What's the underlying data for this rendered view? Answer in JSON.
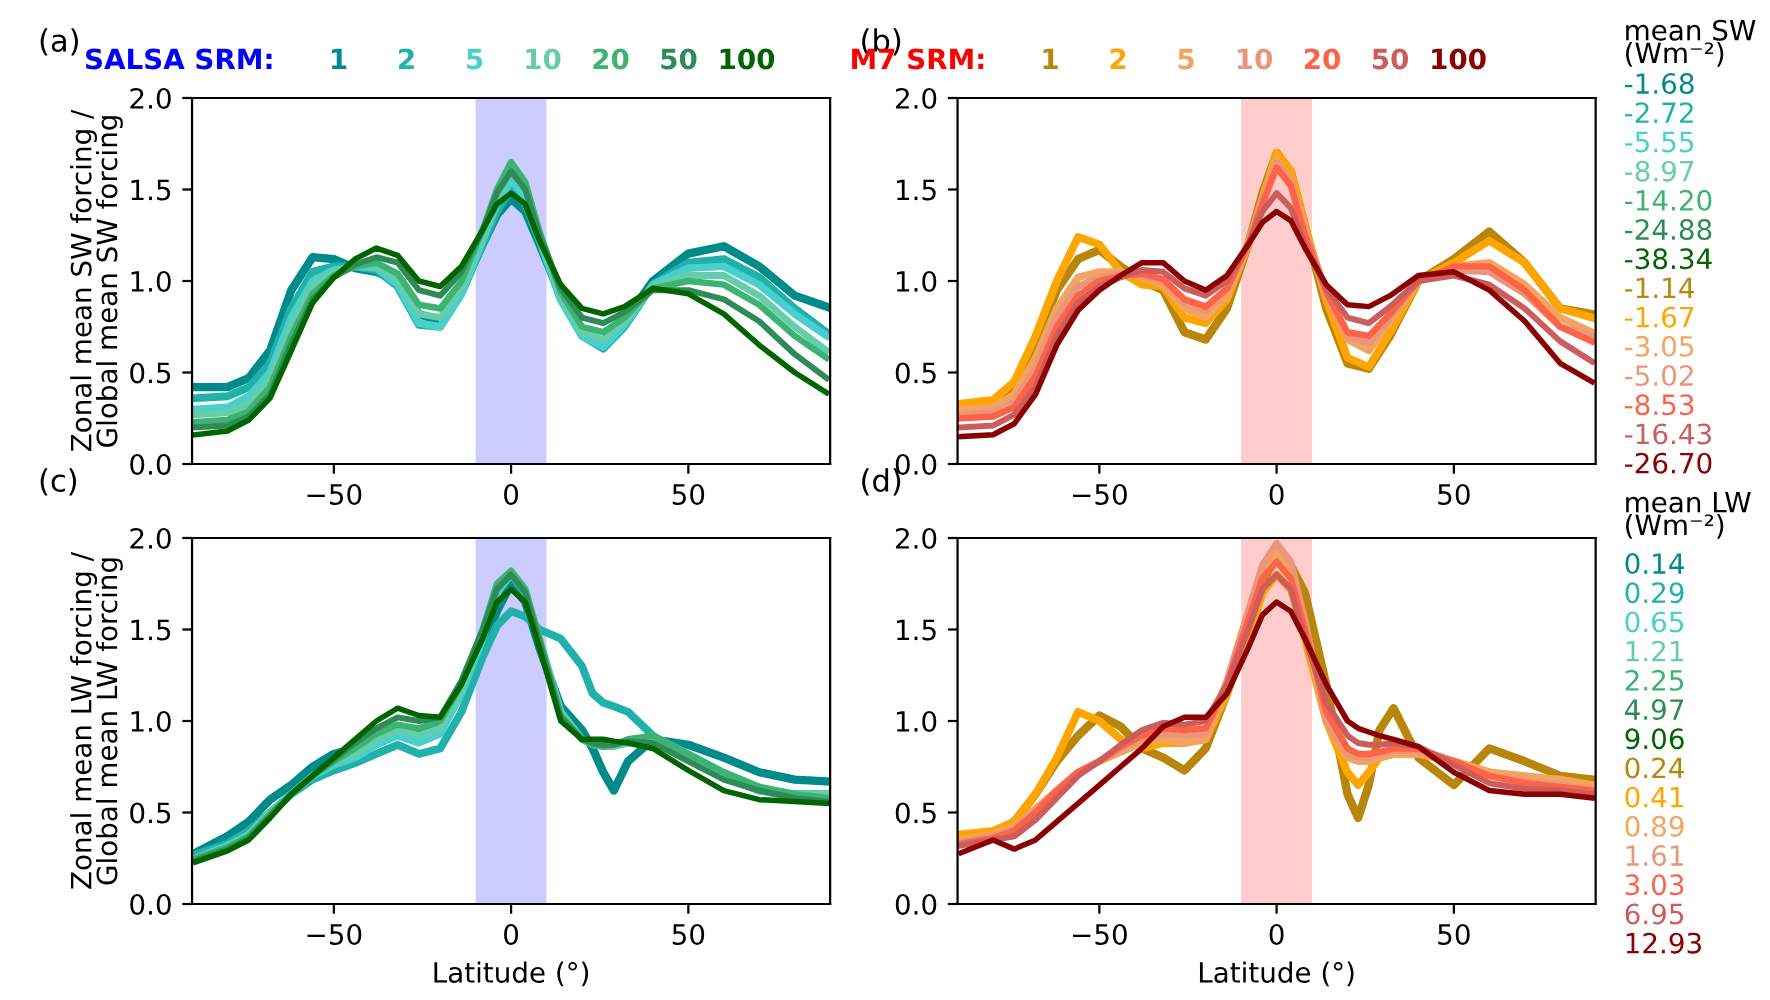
{
  "chart_data": [
    {
      "type": "line",
      "title": "(a)",
      "ylabel": "Zonal mean SW forcing /\nGlobal mean SW forcing",
      "legend_title": "SALSA SRM:",
      "legend": "top",
      "grid": false,
      "xlim": [
        -90,
        90
      ],
      "ylim": [
        0,
        2
      ],
      "xticks": [
        -50,
        0,
        50
      ],
      "yticks": [
        {
          "value": 0,
          "label": "0.0"
        },
        {
          "value": 0.5,
          "label": "0.5"
        },
        {
          "value": 1,
          "label": "1.0"
        },
        {
          "value": 1.5,
          "label": "1.5"
        },
        {
          "value": 2,
          "label": "2.0"
        }
      ],
      "bands": [
        {
          "axis": "x",
          "from": -10,
          "to": 10,
          "color": "#ccccff"
        }
      ],
      "x": [
        -89,
        -80,
        -74,
        -68,
        -62,
        -56,
        -50,
        -44,
        -38,
        -32,
        -26,
        -20,
        -14,
        -8,
        -4,
        0,
        4,
        8,
        14,
        20,
        26,
        32,
        40,
        50,
        60,
        70,
        80,
        89
      ],
      "series": [
        {
          "name": "1",
          "color": "#008b8b",
          "values": [
            0.42,
            0.42,
            0.47,
            0.62,
            0.95,
            1.13,
            1.12,
            1.07,
            1.05,
            1.0,
            0.82,
            0.78,
            0.95,
            1.2,
            1.36,
            1.45,
            1.38,
            1.2,
            0.92,
            0.72,
            0.65,
            0.78,
            1.0,
            1.15,
            1.19,
            1.08,
            0.92,
            0.86
          ]
        },
        {
          "name": "2",
          "color": "#20b2aa",
          "values": [
            0.36,
            0.37,
            0.42,
            0.55,
            0.85,
            1.05,
            1.08,
            1.08,
            1.06,
            0.97,
            0.76,
            0.75,
            0.93,
            1.2,
            1.38,
            1.5,
            1.42,
            1.22,
            0.9,
            0.7,
            0.63,
            0.75,
            0.98,
            1.1,
            1.12,
            1.02,
            0.85,
            0.72
          ]
        },
        {
          "name": "5",
          "color": "#48d1cc",
          "values": [
            0.3,
            0.31,
            0.37,
            0.5,
            0.8,
            1.0,
            1.06,
            1.08,
            1.07,
            0.98,
            0.77,
            0.75,
            0.93,
            1.22,
            1.42,
            1.55,
            1.46,
            1.23,
            0.9,
            0.7,
            0.64,
            0.76,
            0.98,
            1.07,
            1.08,
            0.98,
            0.82,
            0.7
          ]
        },
        {
          "name": "10",
          "color": "#66cdaa",
          "values": [
            0.27,
            0.28,
            0.33,
            0.46,
            0.75,
            0.97,
            1.05,
            1.08,
            1.08,
            1.01,
            0.82,
            0.8,
            0.96,
            1.25,
            1.46,
            1.6,
            1.5,
            1.25,
            0.92,
            0.72,
            0.68,
            0.78,
            0.97,
            1.03,
            1.03,
            0.92,
            0.75,
            0.62
          ]
        },
        {
          "name": "20",
          "color": "#3cb371",
          "values": [
            0.23,
            0.24,
            0.29,
            0.42,
            0.7,
            0.93,
            1.03,
            1.08,
            1.1,
            1.04,
            0.87,
            0.85,
            1.0,
            1.28,
            1.5,
            1.65,
            1.54,
            1.27,
            0.94,
            0.75,
            0.72,
            0.8,
            0.96,
            1.0,
            0.98,
            0.87,
            0.7,
            0.58
          ]
        },
        {
          "name": "50",
          "color": "#2e8b57",
          "values": [
            0.2,
            0.21,
            0.26,
            0.38,
            0.66,
            0.9,
            1.02,
            1.09,
            1.13,
            1.1,
            0.95,
            0.92,
            1.05,
            1.28,
            1.48,
            1.6,
            1.5,
            1.25,
            0.96,
            0.8,
            0.77,
            0.83,
            0.95,
            0.95,
            0.9,
            0.78,
            0.6,
            0.47
          ]
        },
        {
          "name": "100",
          "color": "#006400",
          "values": [
            0.16,
            0.18,
            0.24,
            0.36,
            0.62,
            0.88,
            1.02,
            1.12,
            1.18,
            1.14,
            1.0,
            0.97,
            1.08,
            1.28,
            1.42,
            1.48,
            1.42,
            1.22,
            0.98,
            0.85,
            0.82,
            0.86,
            0.96,
            0.93,
            0.82,
            0.65,
            0.5,
            0.39
          ]
        }
      ]
    },
    {
      "type": "line",
      "title": "(b)",
      "legend_title": "M7 SRM:",
      "legend": "top",
      "grid": false,
      "xlim": [
        -90,
        90
      ],
      "ylim": [
        0,
        2
      ],
      "xticks": [
        -50,
        0,
        50
      ],
      "yticks": [
        {
          "value": 0,
          "label": "0.0"
        },
        {
          "value": 0.5,
          "label": "0.5"
        },
        {
          "value": 1,
          "label": "1.0"
        },
        {
          "value": 1.5,
          "label": "1.5"
        },
        {
          "value": 2,
          "label": "2.0"
        }
      ],
      "bands": [
        {
          "axis": "x",
          "from": -10,
          "to": 10,
          "color": "#ffcccc"
        }
      ],
      "annotations": [
        "mean SW\n(Wm⁻²)",
        "-1.68",
        "-2.72",
        "-5.55",
        "-8.97",
        "-14.20",
        "-24.88",
        "-38.34",
        "-1.14",
        "-1.67",
        "-3.05",
        "-5.02",
        "-8.53",
        "-16.43",
        "-26.70"
      ],
      "x": [
        -89,
        -80,
        -74,
        -68,
        -62,
        -56,
        -50,
        -44,
        -38,
        -32,
        -26,
        -20,
        -14,
        -8,
        -4,
        0,
        4,
        8,
        14,
        20,
        26,
        32,
        40,
        50,
        60,
        70,
        80,
        89
      ],
      "series": [
        {
          "name": "1",
          "color": "#b8860b",
          "values": [
            0.3,
            0.32,
            0.4,
            0.65,
            0.95,
            1.12,
            1.17,
            1.08,
            1.0,
            0.95,
            0.72,
            0.68,
            0.85,
            1.2,
            1.48,
            1.7,
            1.6,
            1.3,
            0.85,
            0.55,
            0.52,
            0.7,
            1.0,
            1.12,
            1.27,
            1.1,
            0.85,
            0.82
          ]
        },
        {
          "name": "2",
          "color": "#ffa500",
          "values": [
            0.33,
            0.35,
            0.45,
            0.7,
            1.0,
            1.24,
            1.2,
            1.05,
            0.98,
            0.97,
            0.8,
            0.77,
            0.9,
            1.2,
            1.45,
            1.7,
            1.6,
            1.3,
            0.9,
            0.58,
            0.53,
            0.72,
            1.0,
            1.1,
            1.22,
            1.1,
            0.85,
            0.8
          ]
        },
        {
          "name": "5",
          "color": "#f4a460",
          "values": [
            0.3,
            0.31,
            0.38,
            0.58,
            0.85,
            1.02,
            1.05,
            1.05,
            1.02,
            0.98,
            0.85,
            0.8,
            0.92,
            1.2,
            1.45,
            1.66,
            1.55,
            1.28,
            0.93,
            0.68,
            0.62,
            0.78,
            1.0,
            1.08,
            1.1,
            0.98,
            0.8,
            0.72
          ]
        },
        {
          "name": "10",
          "color": "#e9967a",
          "values": [
            0.27,
            0.28,
            0.34,
            0.52,
            0.8,
            0.97,
            1.02,
            1.04,
            1.03,
            1.0,
            0.88,
            0.84,
            0.95,
            1.2,
            1.45,
            1.65,
            1.55,
            1.27,
            0.93,
            0.7,
            0.66,
            0.8,
            1.0,
            1.06,
            1.05,
            0.93,
            0.75,
            0.7
          ]
        },
        {
          "name": "20",
          "color": "#ff6347",
          "values": [
            0.25,
            0.26,
            0.31,
            0.48,
            0.75,
            0.92,
            1.0,
            1.03,
            1.04,
            1.01,
            0.9,
            0.86,
            0.96,
            1.2,
            1.42,
            1.62,
            1.52,
            1.25,
            0.94,
            0.72,
            0.7,
            0.82,
            1.0,
            1.08,
            1.08,
            0.95,
            0.75,
            0.67
          ]
        },
        {
          "name": "50",
          "color": "#cd5c5c",
          "values": [
            0.2,
            0.21,
            0.27,
            0.42,
            0.7,
            0.88,
            0.97,
            1.02,
            1.06,
            1.05,
            0.96,
            0.92,
            1.0,
            1.2,
            1.38,
            1.48,
            1.4,
            1.2,
            0.96,
            0.8,
            0.77,
            0.86,
            1.0,
            1.03,
            0.98,
            0.85,
            0.67,
            0.56
          ]
        },
        {
          "name": "100",
          "color": "#8b0000",
          "values": [
            0.15,
            0.16,
            0.22,
            0.38,
            0.65,
            0.84,
            0.95,
            1.03,
            1.1,
            1.1,
            1.0,
            0.95,
            1.03,
            1.2,
            1.32,
            1.38,
            1.33,
            1.18,
            0.98,
            0.87,
            0.86,
            0.92,
            1.03,
            1.05,
            0.95,
            0.78,
            0.55,
            0.45
          ]
        }
      ]
    },
    {
      "type": "line",
      "title": "(c)",
      "xlabel": "Latitude (°)",
      "ylabel": "Zonal mean LW forcing /\nGlobal mean LW forcing",
      "grid": false,
      "xlim": [
        -90,
        90
      ],
      "ylim": [
        0,
        2
      ],
      "xticks": [
        -50,
        0,
        50
      ],
      "yticks": [
        {
          "value": 0,
          "label": "0.0"
        },
        {
          "value": 0.5,
          "label": "0.5"
        },
        {
          "value": 1,
          "label": "1.0"
        },
        {
          "value": 1.5,
          "label": "1.5"
        },
        {
          "value": 2,
          "label": "2.0"
        }
      ],
      "bands": [
        {
          "axis": "x",
          "from": -10,
          "to": 10,
          "color": "#ccccff"
        }
      ],
      "x": [
        -89,
        -80,
        -74,
        -68,
        -62,
        -56,
        -50,
        -44,
        -38,
        -32,
        -26,
        -20,
        -14,
        -8,
        -4,
        0,
        4,
        8,
        14,
        20,
        23,
        26,
        29,
        33,
        40,
        50,
        60,
        70,
        80,
        89
      ],
      "series": [
        {
          "color": "#008b8b",
          "values": [
            0.28,
            0.37,
            0.45,
            0.57,
            0.65,
            0.75,
            0.82,
            0.85,
            0.92,
            0.97,
            0.95,
            1.0,
            1.15,
            1.4,
            1.6,
            1.75,
            1.65,
            1.4,
            1.08,
            0.95,
            0.85,
            0.72,
            0.62,
            0.78,
            0.9,
            0.87,
            0.8,
            0.72,
            0.68,
            0.67
          ]
        },
        {
          "color": "#20b2aa",
          "values": [
            0.27,
            0.33,
            0.4,
            0.5,
            0.6,
            0.68,
            0.73,
            0.77,
            0.82,
            0.87,
            0.82,
            0.85,
            1.05,
            1.35,
            1.52,
            1.6,
            1.57,
            1.5,
            1.45,
            1.3,
            1.15,
            1.1,
            1.08,
            1.05,
            0.92,
            0.8,
            0.7,
            0.62,
            0.6,
            0.6
          ]
        },
        {
          "color": "#48d1cc",
          "values": [
            0.25,
            0.32,
            0.38,
            0.5,
            0.6,
            0.7,
            0.76,
            0.8,
            0.87,
            0.92,
            0.88,
            0.93,
            1.15,
            1.45,
            1.7,
            1.8,
            1.7,
            1.45,
            1.05,
            0.9,
            0.88,
            0.87,
            0.87,
            0.88,
            0.9,
            0.8,
            0.7,
            0.62,
            0.58,
            0.58
          ]
        },
        {
          "color": "#66cdaa",
          "values": [
            0.25,
            0.31,
            0.38,
            0.5,
            0.6,
            0.7,
            0.77,
            0.82,
            0.9,
            0.95,
            0.92,
            0.96,
            1.18,
            1.48,
            1.72,
            1.82,
            1.72,
            1.45,
            1.05,
            0.9,
            0.87,
            0.86,
            0.86,
            0.88,
            0.92,
            0.82,
            0.72,
            0.64,
            0.6,
            0.6
          ]
        },
        {
          "color": "#3cb371",
          "values": [
            0.25,
            0.31,
            0.37,
            0.49,
            0.6,
            0.7,
            0.78,
            0.85,
            0.93,
            0.98,
            0.96,
            1.0,
            1.2,
            1.5,
            1.75,
            1.82,
            1.72,
            1.45,
            1.03,
            0.9,
            0.87,
            0.86,
            0.87,
            0.9,
            0.92,
            0.82,
            0.72,
            0.64,
            0.6,
            0.58
          ]
        },
        {
          "color": "#2e8b57",
          "values": [
            0.24,
            0.3,
            0.36,
            0.48,
            0.6,
            0.7,
            0.79,
            0.88,
            0.96,
            1.02,
            1.0,
            1.02,
            1.22,
            1.5,
            1.72,
            1.8,
            1.7,
            1.43,
            1.02,
            0.9,
            0.88,
            0.87,
            0.87,
            0.89,
            0.88,
            0.78,
            0.68,
            0.62,
            0.58,
            0.56
          ]
        },
        {
          "color": "#006400",
          "values": [
            0.23,
            0.29,
            0.35,
            0.47,
            0.6,
            0.7,
            0.8,
            0.9,
            1.0,
            1.07,
            1.03,
            1.02,
            1.2,
            1.45,
            1.65,
            1.72,
            1.65,
            1.4,
            1.0,
            0.9,
            0.9,
            0.9,
            0.89,
            0.88,
            0.85,
            0.73,
            0.62,
            0.57,
            0.56,
            0.55
          ]
        }
      ]
    },
    {
      "type": "line",
      "title": "(d)",
      "xlabel": "Latitude (°)",
      "grid": false,
      "xlim": [
        -90,
        90
      ],
      "ylim": [
        0,
        2
      ],
      "xticks": [
        -50,
        0,
        50
      ],
      "yticks": [
        {
          "value": 0,
          "label": "0.0"
        },
        {
          "value": 0.5,
          "label": "0.5"
        },
        {
          "value": 1,
          "label": "1.0"
        },
        {
          "value": 1.5,
          "label": "1.5"
        },
        {
          "value": 2,
          "label": "2.0"
        }
      ],
      "bands": [
        {
          "axis": "x",
          "from": -10,
          "to": 10,
          "color": "#ffcccc"
        }
      ],
      "annotations": [
        "mean LW\n(Wm⁻²)",
        "0.14",
        "0.29",
        "0.65",
        "1.21",
        "2.25",
        "4.97",
        "9.06",
        "0.24",
        "0.41",
        "0.89",
        "1.61",
        "3.03",
        "6.95",
        "12.93"
      ],
      "x": [
        -89,
        -80,
        -74,
        -68,
        -62,
        -56,
        -50,
        -44,
        -38,
        -32,
        -26,
        -20,
        -14,
        -8,
        -4,
        0,
        4,
        8,
        14,
        20,
        23,
        26,
        29,
        33,
        40,
        50,
        60,
        70,
        80,
        89
      ],
      "series": [
        {
          "color": "#b8860b",
          "values": [
            0.35,
            0.38,
            0.45,
            0.6,
            0.78,
            0.92,
            1.03,
            0.97,
            0.85,
            0.8,
            0.73,
            0.85,
            1.15,
            1.5,
            1.75,
            1.92,
            1.85,
            1.7,
            1.2,
            0.6,
            0.47,
            0.65,
            0.95,
            1.07,
            0.8,
            0.65,
            0.85,
            0.78,
            0.7,
            0.68
          ]
        },
        {
          "color": "#ffa500",
          "values": [
            0.38,
            0.4,
            0.45,
            0.6,
            0.8,
            1.05,
            1.0,
            0.9,
            0.85,
            0.88,
            0.88,
            0.9,
            1.15,
            1.45,
            1.7,
            1.8,
            1.72,
            1.45,
            1.0,
            0.72,
            0.65,
            0.72,
            0.8,
            0.82,
            0.82,
            0.78,
            0.72,
            0.68,
            0.68,
            0.65
          ]
        },
        {
          "color": "#f4a460",
          "values": [
            0.35,
            0.38,
            0.42,
            0.52,
            0.62,
            0.72,
            0.78,
            0.83,
            0.88,
            0.9,
            0.88,
            0.9,
            1.2,
            1.55,
            1.8,
            1.93,
            1.83,
            1.5,
            1.0,
            0.8,
            0.78,
            0.78,
            0.8,
            0.82,
            0.82,
            0.78,
            0.72,
            0.7,
            0.68,
            0.65
          ]
        },
        {
          "color": "#e9967a",
          "values": [
            0.34,
            0.37,
            0.41,
            0.51,
            0.62,
            0.72,
            0.78,
            0.85,
            0.9,
            0.93,
            0.92,
            0.93,
            1.22,
            1.6,
            1.85,
            1.97,
            1.87,
            1.55,
            1.0,
            0.82,
            0.8,
            0.8,
            0.82,
            0.84,
            0.84,
            0.78,
            0.7,
            0.67,
            0.65,
            0.62
          ]
        },
        {
          "color": "#ff6347",
          "values": [
            0.33,
            0.36,
            0.4,
            0.5,
            0.62,
            0.72,
            0.78,
            0.86,
            0.92,
            0.96,
            0.95,
            0.96,
            1.2,
            1.55,
            1.78,
            1.87,
            1.78,
            1.5,
            1.05,
            0.85,
            0.82,
            0.82,
            0.83,
            0.85,
            0.85,
            0.78,
            0.7,
            0.66,
            0.64,
            0.62
          ]
        },
        {
          "color": "#cd5c5c",
          "values": [
            0.32,
            0.35,
            0.37,
            0.46,
            0.58,
            0.7,
            0.78,
            0.87,
            0.95,
            0.99,
            0.98,
            1.0,
            1.2,
            1.5,
            1.72,
            1.8,
            1.72,
            1.45,
            1.1,
            0.92,
            0.88,
            0.87,
            0.87,
            0.88,
            0.86,
            0.76,
            0.66,
            0.63,
            0.62,
            0.6
          ]
        },
        {
          "color": "#8b0000",
          "values": [
            0.28,
            0.35,
            0.3,
            0.35,
            0.45,
            0.55,
            0.65,
            0.75,
            0.85,
            0.97,
            1.02,
            1.02,
            1.15,
            1.4,
            1.58,
            1.65,
            1.6,
            1.45,
            1.2,
            1.0,
            0.96,
            0.94,
            0.92,
            0.9,
            0.86,
            0.72,
            0.62,
            0.6,
            0.6,
            0.58
          ]
        }
      ]
    }
  ]
}
